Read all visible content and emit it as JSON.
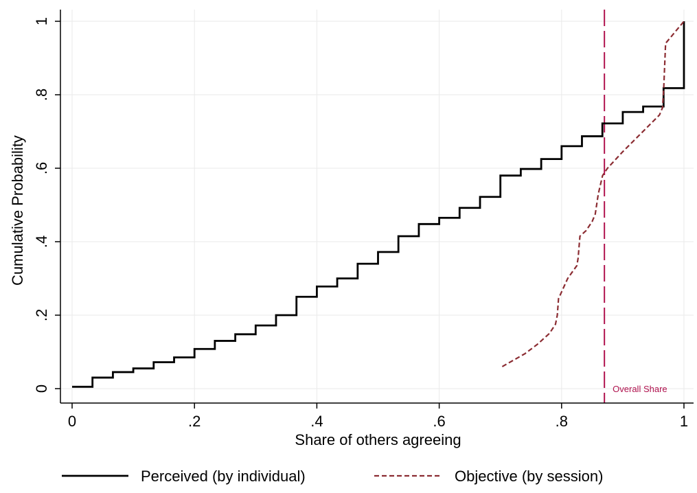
{
  "chart_data": {
    "type": "line",
    "xlabel": "Share of others agreeing",
    "ylabel": "Cumulative Probability",
    "xlim": [
      0,
      1
    ],
    "ylim": [
      0,
      1
    ],
    "x_ticks": [
      0,
      0.2,
      0.4,
      0.6,
      0.8,
      1
    ],
    "x_tick_labels": [
      "0",
      ".2",
      ".4",
      ".6",
      ".8",
      "1"
    ],
    "y_ticks": [
      0,
      0.2,
      0.4,
      0.6,
      0.8,
      1
    ],
    "y_tick_labels": [
      "0",
      ".2",
      ".4",
      ".6",
      ".8",
      "1"
    ],
    "grid": true,
    "legend_position": "bottom",
    "series": [
      {
        "name": "Perceived (by individual)",
        "style": "step",
        "color": "#000000",
        "x": [
          0,
          0.0333,
          0.0667,
          0.1,
          0.1333,
          0.1667,
          0.2,
          0.2333,
          0.2667,
          0.3,
          0.3333,
          0.3667,
          0.4,
          0.4333,
          0.4667,
          0.5,
          0.5333,
          0.5667,
          0.6,
          0.6333,
          0.6667,
          0.7,
          0.7333,
          0.7667,
          0.8,
          0.8333,
          0.8667,
          0.9,
          0.9333,
          0.9667,
          1
        ],
        "y": [
          0.005,
          0.03,
          0.045,
          0.055,
          0.072,
          0.085,
          0.108,
          0.13,
          0.148,
          0.172,
          0.2,
          0.25,
          0.278,
          0.3,
          0.34,
          0.372,
          0.415,
          0.448,
          0.465,
          0.492,
          0.522,
          0.58,
          0.598,
          0.625,
          0.66,
          0.687,
          0.722,
          0.753,
          0.768,
          0.818,
          1
        ]
      },
      {
        "name": "Objective (by session)",
        "style": "dashed",
        "color": "#8b2c32",
        "x": [
          0.703,
          0.74,
          0.76,
          0.78,
          0.79,
          0.793,
          0.795,
          0.81,
          0.825,
          0.827,
          0.83,
          0.84,
          0.85,
          0.855,
          0.86,
          0.867,
          0.875,
          0.9,
          0.93,
          0.96,
          0.965,
          0.967,
          0.97,
          0.98,
          1
        ],
        "y": [
          0.06,
          0.095,
          0.12,
          0.15,
          0.175,
          0.2,
          0.245,
          0.3,
          0.335,
          0.355,
          0.415,
          0.43,
          0.455,
          0.475,
          0.53,
          0.58,
          0.6,
          0.645,
          0.695,
          0.745,
          0.765,
          0.82,
          0.94,
          0.96,
          1
        ]
      }
    ],
    "reference_lines": [
      {
        "orientation": "vertical",
        "x": 0.87,
        "label": "Overall Share",
        "color": "#b0124e",
        "style": "long-dash"
      }
    ]
  }
}
